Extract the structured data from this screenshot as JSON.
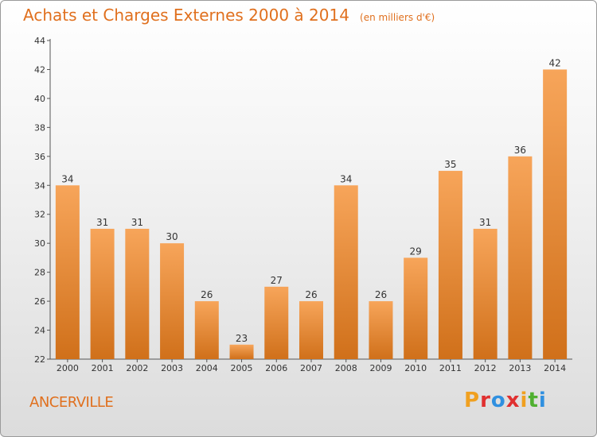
{
  "header": {
    "title": "Achats et Charges Externes 2000 à 2014",
    "subtitle": "(en milliers d'€)"
  },
  "footer": {
    "town": "ANCERVILLE",
    "logo": {
      "letters": [
        "P",
        "r",
        "o",
        "x",
        "i",
        "t",
        "i"
      ],
      "colors": [
        "#f0a020",
        "#e03030",
        "#3090e0",
        "#e03030",
        "#f0a020",
        "#50b030",
        "#3090e0"
      ]
    }
  },
  "colors": {
    "bar_light": "#f7a55a",
    "bar_dark": "#d0701a",
    "accent": "#e0701e"
  },
  "chart_data": {
    "type": "bar",
    "title": "Achats et Charges Externes 2000 à 2014",
    "subtitle": "(en milliers d'€)",
    "categories": [
      "2000",
      "2001",
      "2002",
      "2003",
      "2004",
      "2005",
      "2006",
      "2007",
      "2008",
      "2009",
      "2010",
      "2011",
      "2012",
      "2013",
      "2014"
    ],
    "values": [
      34,
      31,
      31,
      30,
      26,
      23,
      27,
      26,
      34,
      26,
      29,
      35,
      31,
      36,
      42
    ],
    "ylim": [
      22,
      44
    ],
    "yticks": [
      22,
      24,
      26,
      28,
      30,
      32,
      34,
      36,
      38,
      40,
      42,
      44
    ],
    "grid": false,
    "legend": "none"
  }
}
